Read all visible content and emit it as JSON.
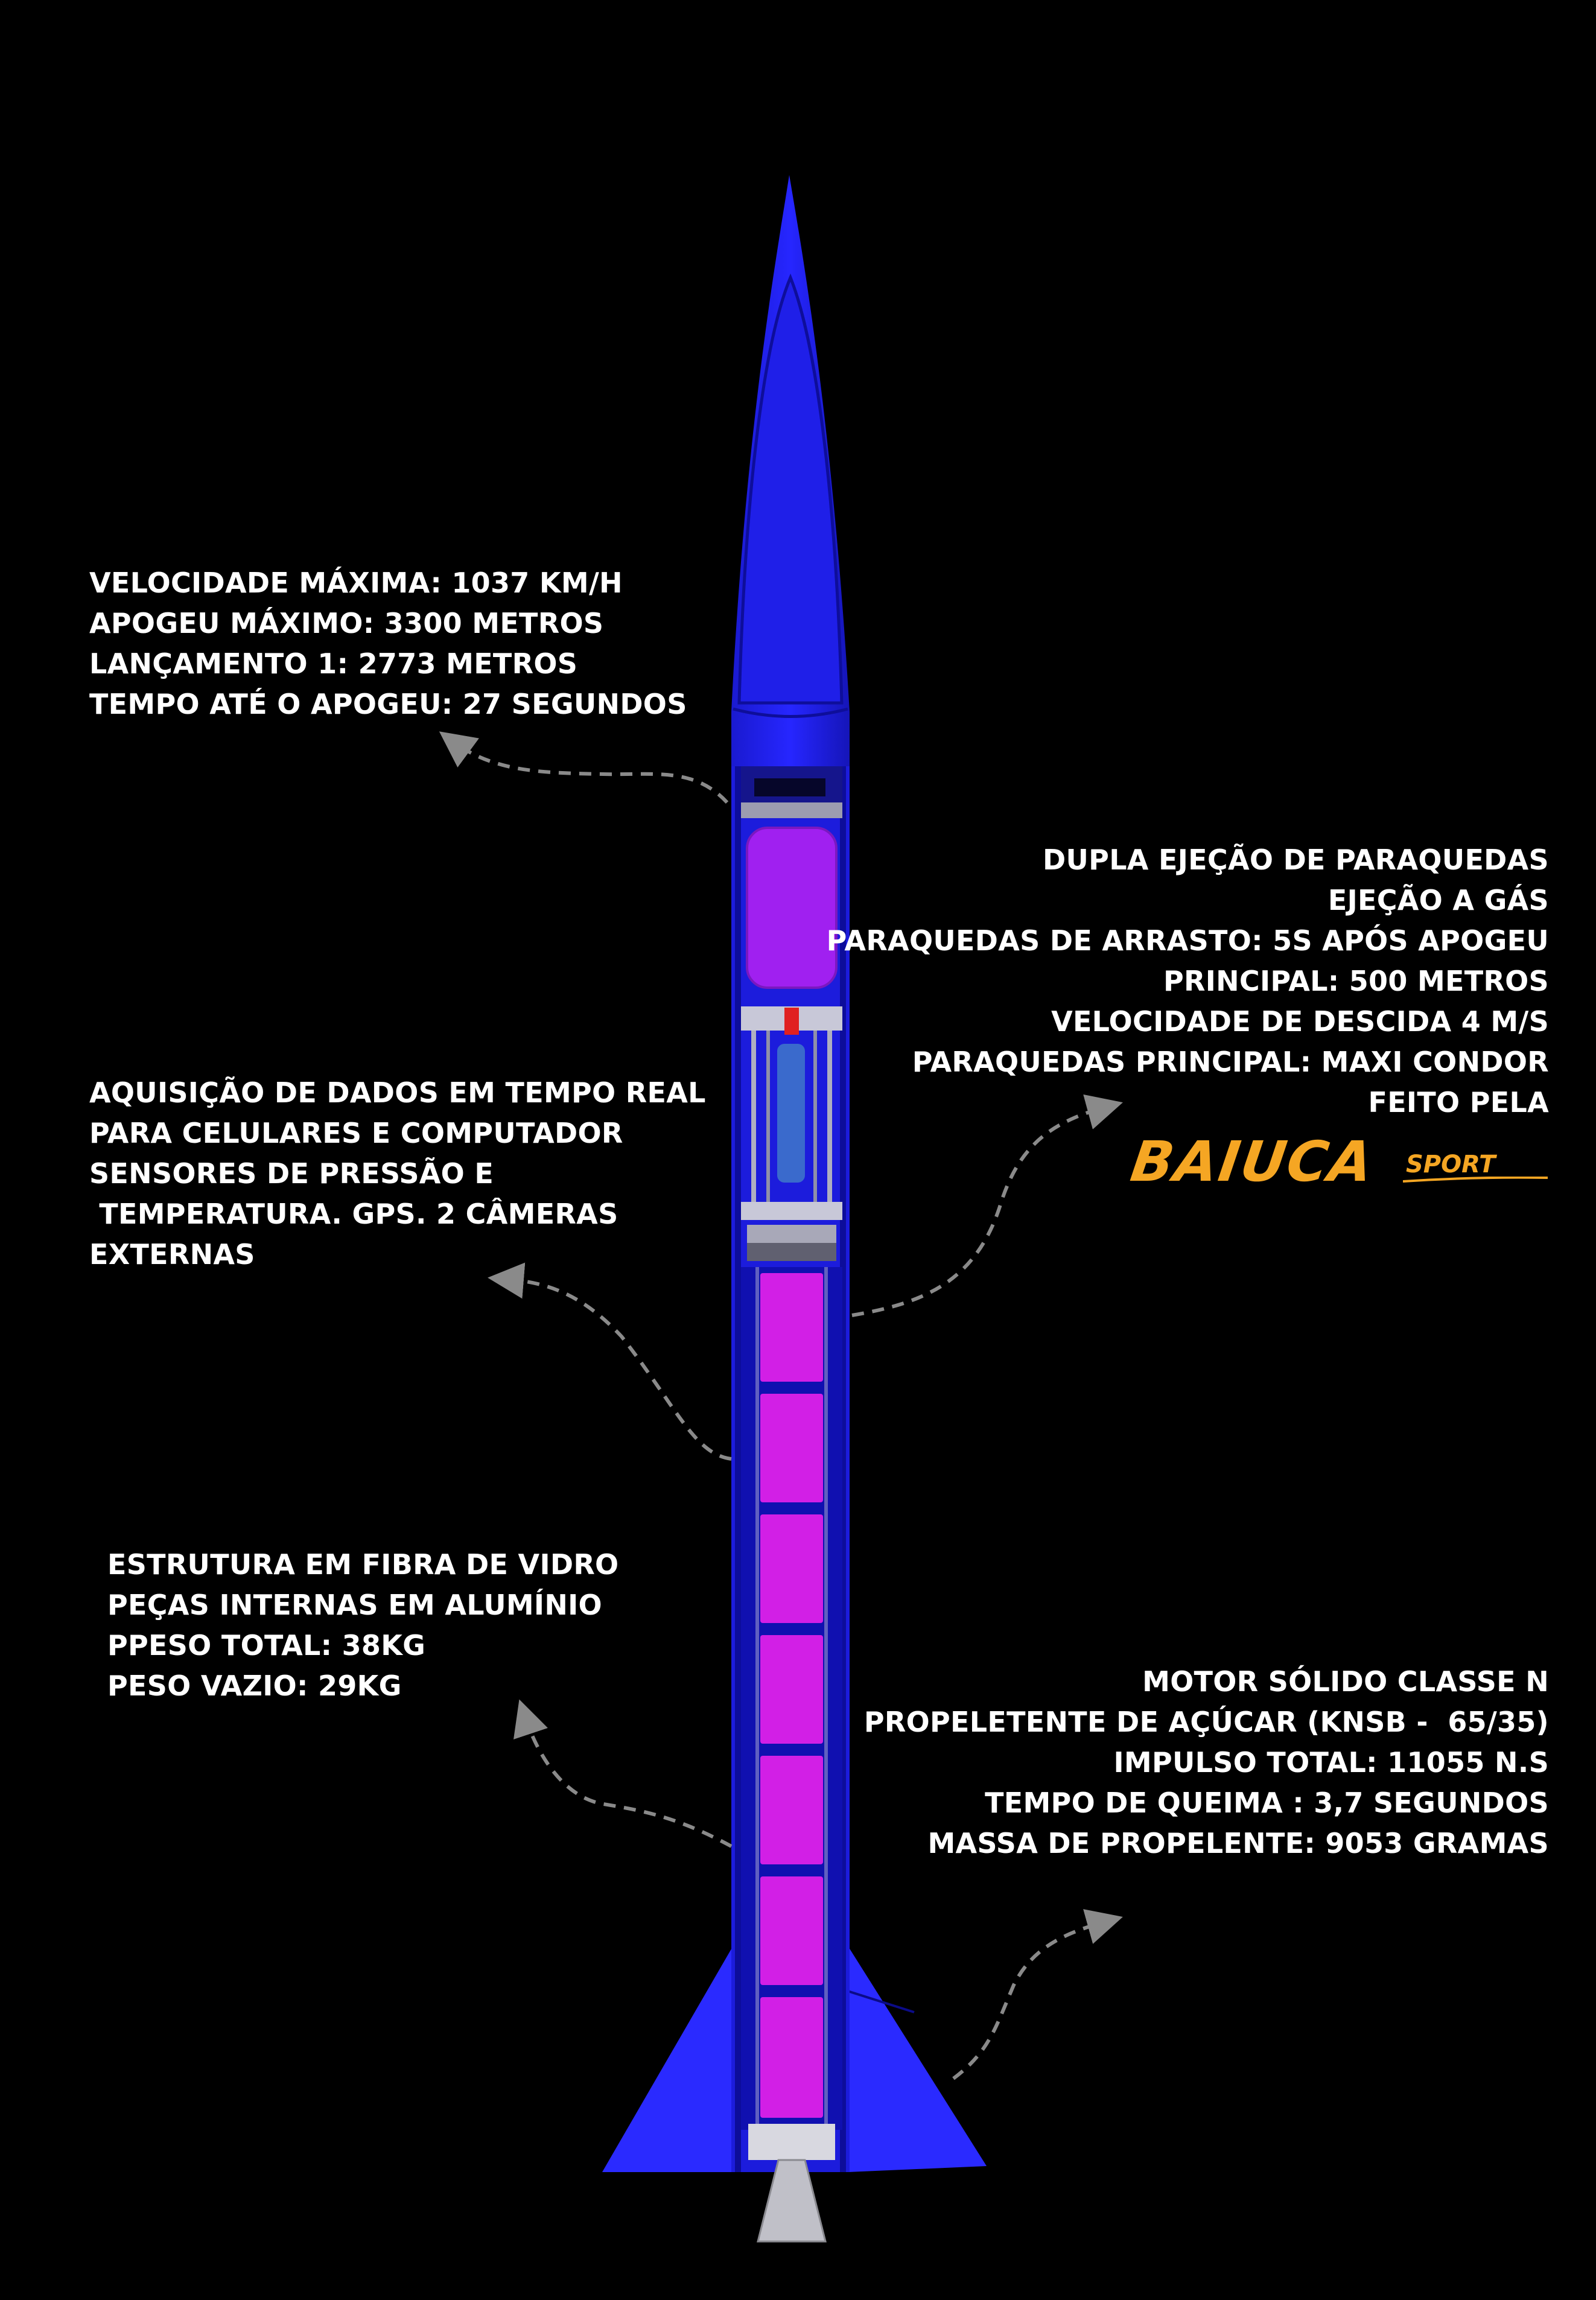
{
  "annotations": {
    "flight": [
      "VELOCIDADE MÁXIMA: 1037 KM/H",
      "APOGEU MÁXIMO: 3300 METROS",
      "LANÇAMENTO 1: 2773 METROS",
      "TEMPO ATÉ O APOGEU: 27 SEGUNDOS"
    ],
    "recovery": [
      "DUPLA EJEÇÃO DE PARAQUEDAS",
      "EJEÇÃO A GÁS",
      "PARAQUEDAS DE ARRASTO: 5S APÓS APOGEU",
      "PRINCIPAL: 500 METROS",
      "VELOCIDADE DE DESCIDA 4 M/S",
      "PARAQUEDAS PRINCIPAL: MAXI CONDOR",
      "FEITO PELA"
    ],
    "avionics": [
      "AQUISIÇÃO DE DADOS EM TEMPO REAL",
      "PARA CELULARES E COMPUTADOR",
      "SENSORES DE PRESSÃO E",
      " TEMPERATURA. GPS. 2 CÂMERAS",
      "EXTERNAS"
    ],
    "structure": [
      "ESTRUTURA EM FIBRA DE VIDRO",
      "PEÇAS INTERNAS EM ALUMÍNIO",
      "PPESO TOTAL: 38KG",
      "PESO VAZIO: 29KG"
    ],
    "motor": [
      "MOTOR SÓLIDO CLASSE N",
      "PROPELETENTE DE AÇÚCAR (KNSB -  65/35)",
      "IMPULSO TOTAL: 11055 N.S",
      "TEMPO DE QUEIMA : 3,7 SEGUNDOS",
      "MASSA DE PROPELENTE: 9053 GRAMAS"
    ]
  },
  "logo": {
    "main": "BAIUCA",
    "sub": "SPORT"
  },
  "colors": {
    "body": "#1e1ee6",
    "propellant": "#d21fe6",
    "payload": "#a020f0",
    "text": "#ffffff",
    "logo": "#f5a623",
    "arrow": "#8a8a8a"
  }
}
